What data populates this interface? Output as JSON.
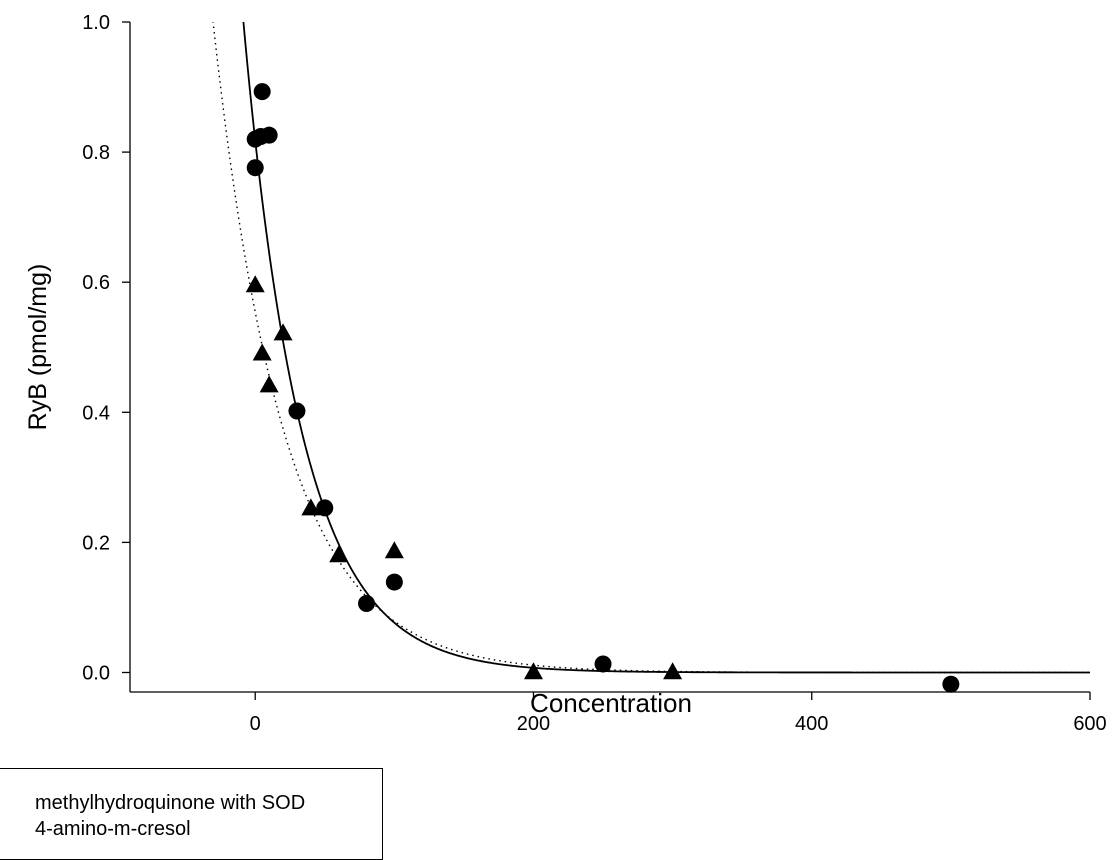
{
  "chart_data": {
    "type": "scatter",
    "title": "",
    "xlabel": "Concentration",
    "ylabel": "RyB (pmol/mg)",
    "xlim": [
      -90,
      600
    ],
    "ylim": [
      -0.03,
      1.0
    ],
    "x_ticks": [
      0,
      200,
      400,
      600
    ],
    "y_ticks": [
      0.0,
      0.2,
      0.4,
      0.6,
      0.8,
      1.0
    ],
    "x_tick_labels": [
      "0",
      "200",
      "400",
      "600"
    ],
    "y_tick_labels": [
      "0.0",
      "0.2",
      "0.4",
      "0.6",
      "0.8",
      "1.0"
    ],
    "grid": false,
    "legend_position": "bottom-left",
    "series": [
      {
        "name": "methylhydroquinone with SOD",
        "marker": "circle",
        "color": "#000000",
        "points": [
          [
            0,
            0.776
          ],
          [
            0,
            0.82
          ],
          [
            4,
            0.824
          ],
          [
            5,
            0.893
          ],
          [
            10,
            0.826
          ],
          [
            30,
            0.402
          ],
          [
            50,
            0.253
          ],
          [
            80,
            0.106
          ],
          [
            100,
            0.139
          ],
          [
            250,
            0.013
          ],
          [
            500,
            -0.018
          ]
        ],
        "fit": {
          "line": "solid",
          "a": 0.818,
          "b": 0.0237
        }
      },
      {
        "name": "4-amino-m-cresol",
        "marker": "triangle",
        "color": "#000000",
        "points": [
          [
            0,
            0.595
          ],
          [
            5,
            0.49
          ],
          [
            10,
            0.441
          ],
          [
            20,
            0.521
          ],
          [
            40,
            0.252
          ],
          [
            60,
            0.18
          ],
          [
            100,
            0.186
          ],
          [
            200,
            0.0
          ],
          [
            300,
            0.0
          ]
        ],
        "fit": {
          "line": "dotted",
          "a": 0.554,
          "b": 0.0195
        }
      }
    ]
  }
}
